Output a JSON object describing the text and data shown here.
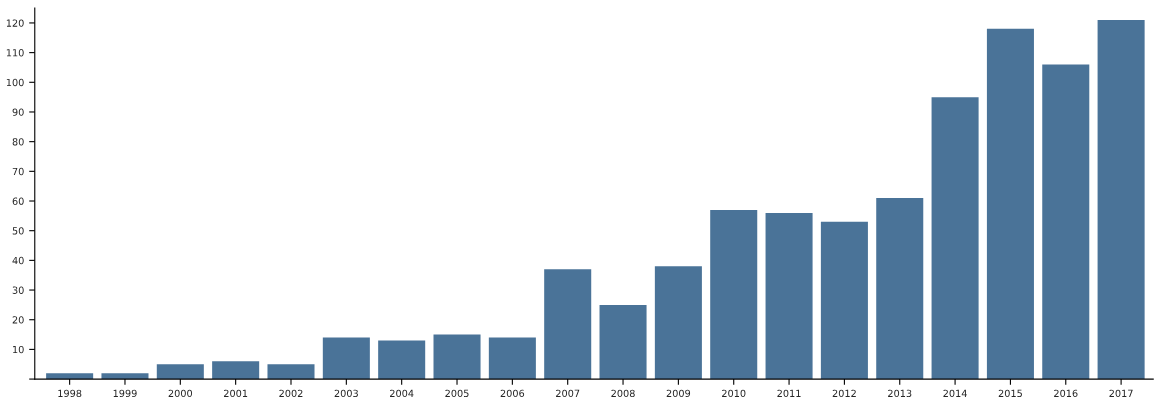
{
  "chart_data": {
    "type": "bar",
    "categories": [
      "1998",
      "1999",
      "2000",
      "2001",
      "2002",
      "2003",
      "2004",
      "2005",
      "2006",
      "2007",
      "2008",
      "2009",
      "2010",
      "2011",
      "2012",
      "2013",
      "2014",
      "2015",
      "2016",
      "2017"
    ],
    "values": [
      2,
      2,
      5,
      6,
      5,
      14,
      13,
      15,
      14,
      37,
      25,
      38,
      57,
      56,
      53,
      61,
      95,
      118,
      106,
      121
    ],
    "color": "#4a7398",
    "ylim": [
      0,
      125
    ],
    "yticks": [
      {
        "value": 0,
        "label": null
      },
      10,
      20,
      30,
      40,
      50,
      60,
      70,
      80,
      90,
      100,
      110,
      120
    ],
    "grid": false
  }
}
